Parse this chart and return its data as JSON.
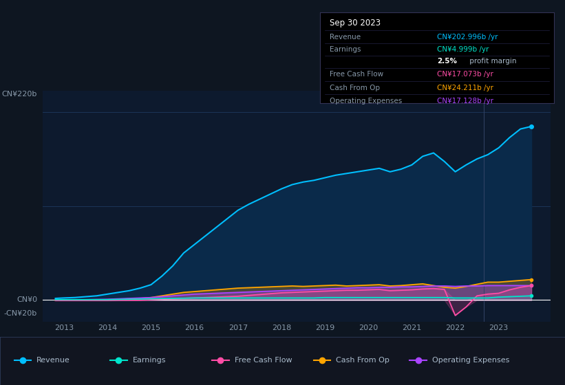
{
  "bg_color": "#0e1621",
  "plot_bg_color": "#0d1a2e",
  "grid_color": "#1e3a5f",
  "text_color": "#8899aa",
  "ylim": [
    -25,
    245
  ],
  "xticks": [
    2013,
    2014,
    2015,
    2016,
    2017,
    2018,
    2019,
    2020,
    2021,
    2022,
    2023
  ],
  "years": [
    2012.8,
    2013.0,
    2013.25,
    2013.5,
    2013.75,
    2014.0,
    2014.25,
    2014.5,
    2014.75,
    2015.0,
    2015.25,
    2015.5,
    2015.75,
    2016.0,
    2016.25,
    2016.5,
    2016.75,
    2017.0,
    2017.25,
    2017.5,
    2017.75,
    2018.0,
    2018.25,
    2018.5,
    2018.75,
    2019.0,
    2019.25,
    2019.5,
    2019.75,
    2020.0,
    2020.25,
    2020.5,
    2020.75,
    2021.0,
    2021.25,
    2021.5,
    2021.75,
    2022.0,
    2022.25,
    2022.5,
    2022.75,
    2023.0,
    2023.25,
    2023.5,
    2023.75
  ],
  "revenue": [
    2,
    2.5,
    3,
    4,
    5,
    7,
    9,
    11,
    14,
    18,
    28,
    40,
    55,
    65,
    75,
    85,
    95,
    105,
    112,
    118,
    124,
    130,
    135,
    138,
    140,
    143,
    146,
    148,
    150,
    152,
    154,
    150,
    153,
    158,
    168,
    172,
    162,
    150,
    158,
    165,
    170,
    178,
    190,
    200,
    203
  ],
  "earnings": [
    0.5,
    0.5,
    0.5,
    0.5,
    0.5,
    0.5,
    0.8,
    1.0,
    1.2,
    1.5,
    1.8,
    2.0,
    2.2,
    2.5,
    2.5,
    2.5,
    2.5,
    2.5,
    2.5,
    2.5,
    2.5,
    2.5,
    2.5,
    2.5,
    2.5,
    3.0,
    3.0,
    3.0,
    3.0,
    3.0,
    3.0,
    3.0,
    3.0,
    3.0,
    3.0,
    3.0,
    3.0,
    2.5,
    2.5,
    2.5,
    2.5,
    3.5,
    4.0,
    4.5,
    5.0
  ],
  "free_cash_flow": [
    -0.5,
    -0.5,
    -0.5,
    -0.5,
    -0.5,
    -0.5,
    -0.3,
    -0.2,
    -0.1,
    0.5,
    1.0,
    1.5,
    2.0,
    2.5,
    3.0,
    3.5,
    4.0,
    4.5,
    5.5,
    6.5,
    7.5,
    8.5,
    9.0,
    9.5,
    10.0,
    10.5,
    11.0,
    11.5,
    11.5,
    12.0,
    12.5,
    11.0,
    11.5,
    12.0,
    13.0,
    13.5,
    12.5,
    -18.0,
    -8.0,
    5.0,
    7.0,
    8.0,
    12.0,
    15.0,
    17.0
  ],
  "cash_from_op": [
    -0.5,
    -0.3,
    -0.2,
    0.0,
    0.2,
    0.5,
    1.0,
    1.5,
    2.0,
    3.0,
    5.0,
    7.0,
    9.0,
    10.0,
    11.0,
    12.0,
    13.0,
    14.0,
    14.5,
    15.0,
    15.5,
    16.0,
    16.5,
    16.0,
    16.5,
    17.0,
    17.5,
    16.5,
    17.0,
    17.5,
    18.0,
    16.5,
    17.0,
    18.0,
    19.0,
    17.0,
    15.0,
    14.0,
    16.0,
    18.5,
    21.0,
    21.0,
    22.0,
    23.0,
    24.0
  ],
  "operating_expenses": [
    0.5,
    0.5,
    0.5,
    0.5,
    0.8,
    1.0,
    1.5,
    2.0,
    2.5,
    3.0,
    4.0,
    5.0,
    6.0,
    7.0,
    7.5,
    8.0,
    8.5,
    9.0,
    9.5,
    10.0,
    10.5,
    11.0,
    11.5,
    12.0,
    12.5,
    13.0,
    13.5,
    14.0,
    14.5,
    14.5,
    15.0,
    15.0,
    15.5,
    15.5,
    16.0,
    16.5,
    16.5,
    16.0,
    16.5,
    16.5,
    17.0,
    17.0,
    17.0,
    17.0,
    17.0
  ],
  "revenue_color": "#00bfff",
  "earnings_color": "#00e5cc",
  "free_cash_flow_color": "#ff4da6",
  "cash_from_op_color": "#ffa500",
  "operating_expenses_color": "#aa44ff",
  "revenue_fill": "#0a2a4a",
  "tooltip_title": "Sep 30 2023",
  "legend_entries": [
    {
      "label": "Revenue",
      "color": "#00bfff"
    },
    {
      "label": "Earnings",
      "color": "#00e5cc"
    },
    {
      "label": "Free Cash Flow",
      "color": "#ff4da6"
    },
    {
      "label": "Cash From Op",
      "color": "#ffa500"
    },
    {
      "label": "Operating Expenses",
      "color": "#aa44ff"
    }
  ]
}
